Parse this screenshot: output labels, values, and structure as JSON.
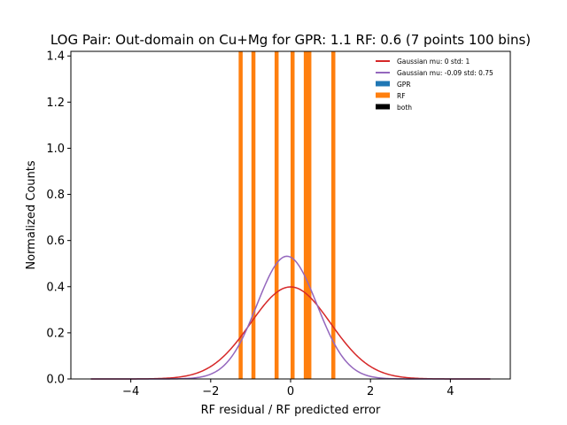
{
  "chart_data": {
    "type": "histogram",
    "title": "LOG Pair: Out-domain on Cu+Mg for GPR: 1.1 RF: 0.6 (7 points 100 bins)",
    "xlabel": "RF residual / RF predicted error",
    "ylabel": "Normalized Counts",
    "xlim": [
      -5.5,
      5.5
    ],
    "ylim": [
      0,
      1.42
    ],
    "x_ticks": [
      -4,
      -2,
      0,
      2,
      4
    ],
    "x_tick_labels": [
      "−4",
      "−2",
      "0",
      "2",
      "4"
    ],
    "y_ticks": [
      0.0,
      0.2,
      0.4,
      0.6,
      0.8,
      1.0,
      1.2,
      1.4
    ],
    "y_tick_labels": [
      "0.0",
      "0.2",
      "0.4",
      "0.6",
      "0.8",
      "1.0",
      "1.2",
      "1.4"
    ],
    "grid": false,
    "legend_position": "top-right",
    "legend": [
      {
        "label": "Gaussian mu: 0 std: 1",
        "kind": "line",
        "color": "#d62728"
      },
      {
        "label": "Gaussian mu: -0.09 std: 0.75",
        "kind": "line",
        "color": "#9467bd"
      },
      {
        "label": "GPR",
        "kind": "patch",
        "color": "#1f77b4"
      },
      {
        "label": "RF",
        "kind": "patch",
        "color": "#ff7f0e"
      },
      {
        "label": "both",
        "kind": "patch",
        "color": "#2ff2c"
      }
    ],
    "bar_width": 0.1,
    "rf_bars": [
      {
        "x": -1.25,
        "height": 1.43
      },
      {
        "x": -0.93,
        "height": 1.43
      },
      {
        "x": -0.35,
        "height": 1.43
      },
      {
        "x": 0.05,
        "height": 1.43
      },
      {
        "x": 0.38,
        "height": 1.43
      },
      {
        "x": 0.47,
        "height": 1.43
      },
      {
        "x": 1.07,
        "height": 1.43
      }
    ],
    "curves": [
      {
        "name": "Gaussian mu: 0 std: 1",
        "mu": 0,
        "std": 1,
        "color": "#d62728",
        "x_range": [
          -5,
          5
        ]
      },
      {
        "name": "Gaussian mu: -0.09 std: 0.75",
        "mu": -0.09,
        "std": 0.75,
        "color": "#9467bd",
        "x_range": [
          -5,
          5
        ]
      }
    ]
  }
}
